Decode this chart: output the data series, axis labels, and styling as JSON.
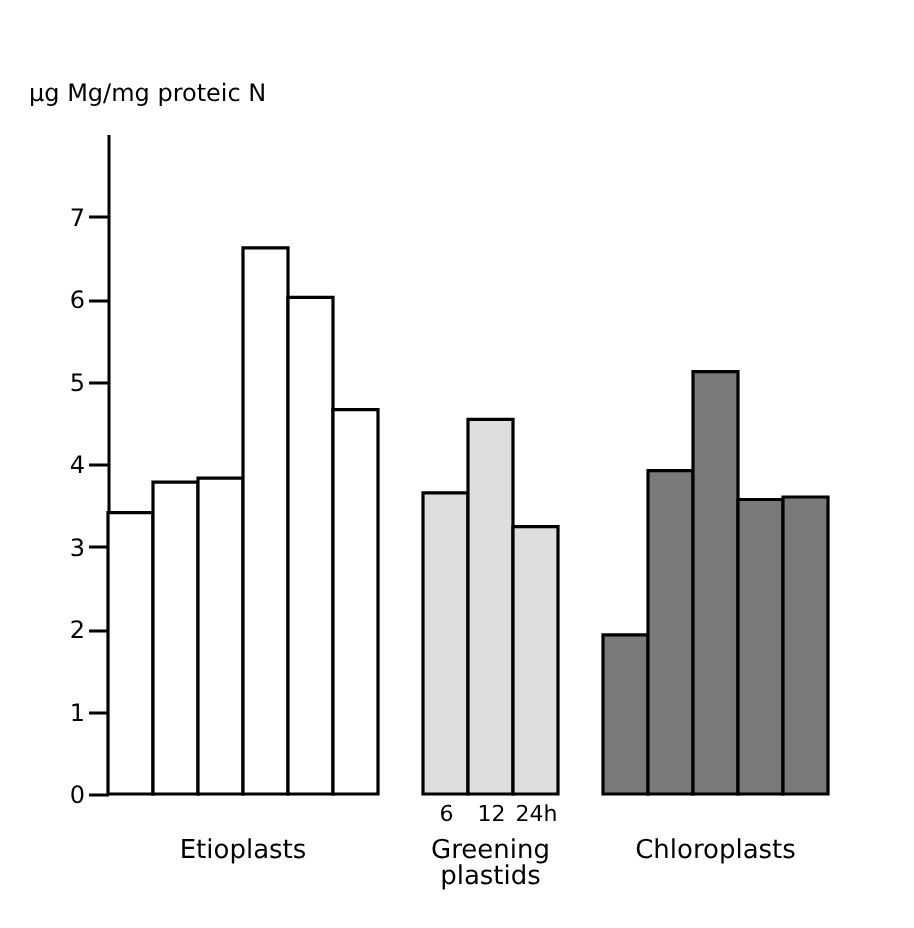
{
  "chart_data": {
    "type": "bar",
    "ylabel": "µg Mg/mg proteic N",
    "ylim": [
      0,
      8
    ],
    "yticks": [
      0,
      1,
      2,
      3,
      4,
      5,
      6,
      7
    ],
    "grid": false,
    "legend": false,
    "categories": [
      null,
      null,
      null,
      null,
      null,
      null,
      null,
      "6",
      "12",
      "24h",
      null,
      null,
      null,
      null,
      null,
      null
    ],
    "series": [
      {
        "name": "Etioplasts",
        "color": "#ffffff",
        "values": [
          3.41,
          3.78,
          3.83,
          6.62,
          6.02,
          4.66,
          null,
          null,
          null,
          null,
          null,
          null,
          null,
          null,
          null,
          null
        ]
      },
      {
        "name": "Greening plastids",
        "color": "#dedede",
        "values": [
          null,
          null,
          null,
          null,
          null,
          null,
          null,
          3.65,
          4.54,
          3.24,
          null,
          null,
          null,
          null,
          null,
          null
        ]
      },
      {
        "name": "Chloroplasts",
        "color": "#7a7a7a",
        "values": [
          null,
          null,
          null,
          null,
          null,
          null,
          null,
          null,
          null,
          null,
          null,
          1.93,
          3.92,
          5.12,
          3.57,
          3.6
        ]
      }
    ]
  }
}
